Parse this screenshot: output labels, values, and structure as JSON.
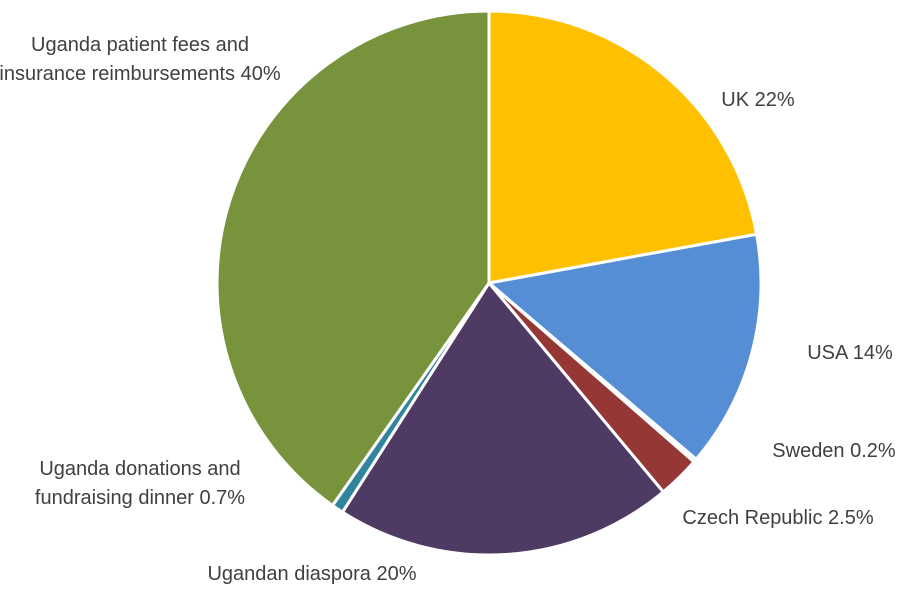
{
  "chart_data": {
    "type": "pie",
    "categories": [
      "UK",
      "USA",
      "Sweden",
      "Czech Republic",
      "Ugandan diaspora",
      "Uganda donations and fundraising dinner",
      "Uganda patient fees and insurance reimbursements"
    ],
    "values": [
      22,
      14,
      0.2,
      2.5,
      20,
      0.7,
      40
    ],
    "value_labels": [
      "22%",
      "14%",
      "0.2%",
      "2.5%",
      "20%",
      "0.7%",
      "40%"
    ],
    "colors": [
      "#ffc000",
      "#558ed5",
      "#d9d9d9",
      "#953735",
      "#4f3a63",
      "#31849b",
      "#77933c"
    ]
  }
}
